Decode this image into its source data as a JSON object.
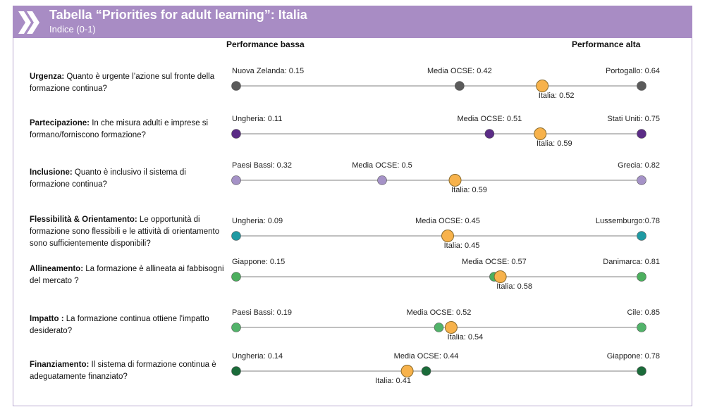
{
  "header": {
    "title": "Tabella “Priorities for adult learning”: Italia",
    "subtitle": "Indice (0-1)",
    "bg_color": "#a88cc4"
  },
  "columns": {
    "low": "Performance bassa",
    "high": "Performance alta"
  },
  "highlight_color": "#f7b24b",
  "chart_data": {
    "type": "scatter",
    "xlim": [
      0,
      1
    ],
    "rows": [
      {
        "bold": "Urgenza:",
        "text": " Quanto è urgente l’azione sul fronte della formazione continua?",
        "color": "#5a5a5a",
        "min": {
          "label": "Nuova Zelanda: 0.15",
          "value": 0.15
        },
        "avg": {
          "label": "Media OCSE: 0.42",
          "value": 0.42
        },
        "max": {
          "label": "Portogallo: 0.64",
          "value": 0.64
        },
        "italy": {
          "label": "Italia: 0.52",
          "value": 0.52
        }
      },
      {
        "bold": "Partecipazione:",
        "text": " In che misura adulti e imprese si formano/forniscono formazione?",
        "color": "#5b2c86",
        "min": {
          "label": "Ungheria: 0.11",
          "value": 0.11
        },
        "avg": {
          "label": "Media OCSE: 0.51",
          "value": 0.51
        },
        "max": {
          "label": "Stati Uniti: 0.75",
          "value": 0.75
        },
        "italy": {
          "label": "Italia: 0.59",
          "value": 0.59
        }
      },
      {
        "bold": "Inclusione:",
        "text": " Quanto è inclusivo il sistema di formazione continua?",
        "color": "#a592c7",
        "min": {
          "label": "Paesi Bassi: 0.32",
          "value": 0.32
        },
        "avg": {
          "label": "Media OCSE: 0.5",
          "value": 0.5
        },
        "max": {
          "label": "Grecia: 0.82",
          "value": 0.82
        },
        "italy": {
          "label": "Italia: 0.59",
          "value": 0.59
        }
      },
      {
        "bold": "Flessibilità & Orientamento:",
        "text": " Le opportunità di formazione sono flessibili e le attività di orientamento sono sufficientemente disponibili?",
        "color": "#1f9aa3",
        "min": {
          "label": "Ungheria: 0.09",
          "value": 0.09
        },
        "avg": {
          "label": "Media OCSE: 0.45",
          "value": 0.45
        },
        "max": {
          "label": "Lussemburgo:0.78",
          "value": 0.78
        },
        "italy": {
          "label": "Italia: 0.45",
          "value": 0.45
        }
      },
      {
        "bold": "Allineamento:",
        "text": " La formazione è allineata ai fabbisogni del mercato ?",
        "color": "#4caf5e",
        "min": {
          "label": "Giappone: 0.15",
          "value": 0.15
        },
        "avg": {
          "label": "Media OCSE: 0.57",
          "value": 0.57
        },
        "max": {
          "label": "Danimarca: 0.81",
          "value": 0.81
        },
        "italy": {
          "label": "Italia: 0.58",
          "value": 0.58
        }
      },
      {
        "bold": "Impatto :",
        "text": " La formazione continua ottiene l'impatto  desiderato?",
        "color": "#52b36a",
        "min": {
          "label": "Paesi Bassi: 0.19",
          "value": 0.19
        },
        "avg": {
          "label": "Media OCSE: 0.52",
          "value": 0.52
        },
        "max": {
          "label": "Cile: 0.85",
          "value": 0.85
        },
        "italy": {
          "label": "Italia: 0.54",
          "value": 0.54
        }
      },
      {
        "bold": "Finanziamento:",
        "text": " Il sistema di formazione continua è adeguatamente finanziato?",
        "color": "#1b6b3a",
        "min": {
          "label": "Ungheria: 0.14",
          "value": 0.14
        },
        "avg": {
          "label": "Media OCSE: 0.44",
          "value": 0.44
        },
        "max": {
          "label": "Giappone: 0.78",
          "value": 0.78
        },
        "italy": {
          "label": "Italia: 0.41",
          "value": 0.41
        }
      }
    ]
  }
}
